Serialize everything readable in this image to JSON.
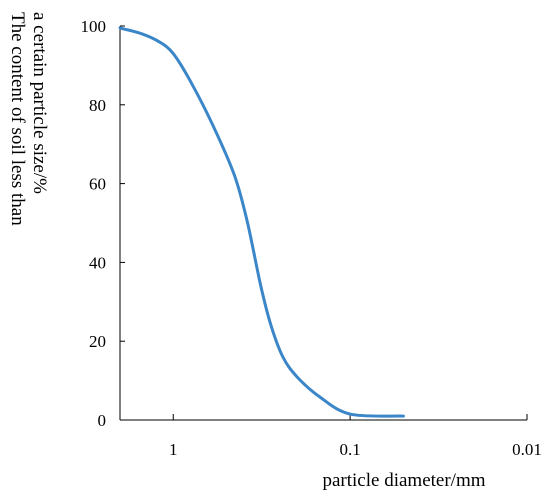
{
  "chart_data": {
    "type": "line",
    "x_scale": "log-reversed",
    "xlabel": "particle diameter/mm",
    "ylabel_lines": [
      "The content of soil less than",
      "a certain particle size/%"
    ],
    "xlim": [
      2,
      0.01
    ],
    "ylim": [
      0,
      100
    ],
    "x_ticks": [
      {
        "value": 1,
        "label": "1"
      },
      {
        "value": 0.1,
        "label": "0.1"
      },
      {
        "value": 0.01,
        "label": "0.01"
      }
    ],
    "y_ticks": [
      {
        "value": 0,
        "label": "0"
      },
      {
        "value": 20,
        "label": "20"
      },
      {
        "value": 40,
        "label": "40"
      },
      {
        "value": 60,
        "label": "60"
      },
      {
        "value": 80,
        "label": "80"
      },
      {
        "value": 100,
        "label": "100"
      }
    ],
    "grid": false,
    "series": [
      {
        "color": "#3a86c8",
        "points": [
          {
            "x": 2.0,
            "y": 99.5
          },
          {
            "x": 1.5,
            "y": 98
          },
          {
            "x": 1.2,
            "y": 96
          },
          {
            "x": 1.0,
            "y": 93
          },
          {
            "x": 0.8,
            "y": 86
          },
          {
            "x": 0.6,
            "y": 75
          },
          {
            "x": 0.45,
            "y": 62
          },
          {
            "x": 0.38,
            "y": 50
          },
          {
            "x": 0.32,
            "y": 34
          },
          {
            "x": 0.28,
            "y": 24
          },
          {
            "x": 0.24,
            "y": 16
          },
          {
            "x": 0.2,
            "y": 11
          },
          {
            "x": 0.15,
            "y": 6
          },
          {
            "x": 0.1,
            "y": 1.5
          },
          {
            "x": 0.05,
            "y": 1
          }
        ]
      }
    ]
  }
}
